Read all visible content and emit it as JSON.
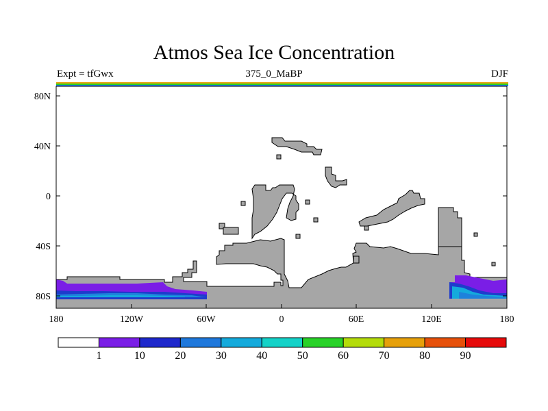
{
  "title": "Atmos Sea Ice Concentration",
  "left_string": "Expt = tfGwx",
  "center_string": "375_0_MaBP",
  "right_string": "DJF",
  "colors": {
    "land": "#a6a6a6",
    "ocean": "#ffffff",
    "ice_purple": "#7a1ee6",
    "ice_blue": "#1e3ccc",
    "ice_mid": "#1e82dc",
    "ice_cyan": "#14aadc"
  },
  "axes": {
    "x_ticks": [
      "180",
      "120W",
      "60W",
      "0",
      "60E",
      "120E",
      "180"
    ],
    "y_ticks": [
      "80N",
      "40N",
      "0",
      "40S",
      "80S"
    ]
  },
  "colorbar": {
    "labels": [
      "1",
      "10",
      "20",
      "30",
      "40",
      "50",
      "60",
      "70",
      "80",
      "90"
    ],
    "colors": [
      "#ffffff",
      "#7a1ee6",
      "#1e28cc",
      "#1e78dc",
      "#14aadc",
      "#14d2c8",
      "#28d228",
      "#b4dc0a",
      "#e6a00a",
      "#e6500a",
      "#e60a0a"
    ]
  }
}
